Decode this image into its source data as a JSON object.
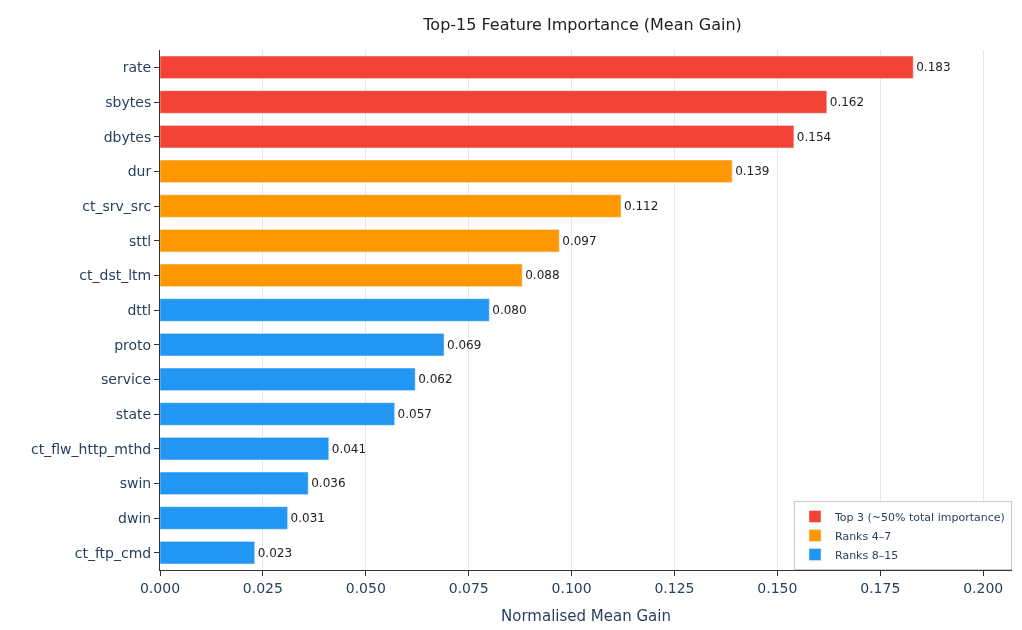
{
  "chart_data": {
    "type": "bar",
    "orientation": "horizontal",
    "title": "Top-15 Feature Importance (Mean Gain)",
    "xlabel": "Normalised Mean Gain",
    "categories": [
      "rate",
      "sbytes",
      "dbytes",
      "dur",
      "ct_srv_src",
      "sttl",
      "ct_dst_ltm",
      "dttl",
      "proto",
      "service",
      "state",
      "ct_flw_http_mthd",
      "swin",
      "dwin",
      "ct_ftp_cmd"
    ],
    "series": [
      {
        "name": "Top 3 (~50% total importance)",
        "color": "#f44336",
        "values": [
          0.183,
          0.162,
          0.154,
          null,
          null,
          null,
          null,
          null,
          null,
          null,
          null,
          null,
          null,
          null,
          null
        ],
        "value_labels": [
          "0.183",
          "0.162",
          "0.154",
          null,
          null,
          null,
          null,
          null,
          null,
          null,
          null,
          null,
          null,
          null,
          null
        ]
      },
      {
        "name": "Ranks 4–7",
        "color": "#ff9800",
        "values": [
          null,
          null,
          null,
          0.139,
          0.112,
          0.097,
          0.088,
          null,
          null,
          null,
          null,
          null,
          null,
          null,
          null
        ],
        "value_labels": [
          null,
          null,
          null,
          "0.139",
          "0.112",
          "0.097",
          "0.088",
          null,
          null,
          null,
          null,
          null,
          null,
          null,
          null
        ]
      },
      {
        "name": "Ranks 8–15",
        "color": "#2196f3",
        "values": [
          null,
          null,
          null,
          null,
          null,
          null,
          null,
          0.08,
          0.069,
          0.062,
          0.057,
          0.041,
          0.036,
          0.031,
          0.023
        ],
        "value_labels": [
          null,
          null,
          null,
          null,
          null,
          null,
          null,
          "0.080",
          "0.069",
          "0.062",
          "0.057",
          "0.041",
          "0.036",
          "0.031",
          "0.023"
        ]
      }
    ],
    "xlim": [
      0,
      0.207
    ],
    "xticks": [
      {
        "value": 0,
        "label": "0.000"
      },
      0.025,
      {
        "value": 0.05,
        "label": "0.050"
      },
      0.075,
      {
        "value": 0.1,
        "label": "0.100"
      },
      0.125,
      {
        "value": 0.15,
        "label": "0.150"
      },
      0.175,
      {
        "value": 0.2,
        "label": "0.200"
      }
    ],
    "grid": "x",
    "legend": "bottom right"
  }
}
